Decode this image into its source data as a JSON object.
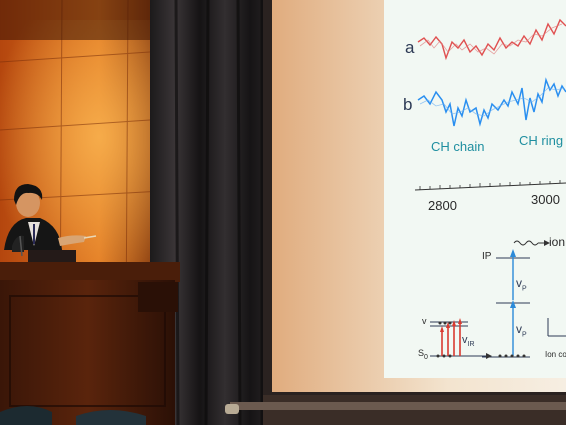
{
  "slide": {
    "trace_a_label": "a",
    "trace_b_label": "b",
    "trace_a_color": "#e05050",
    "trace_b_color": "#2a8ff0",
    "band_labels": [
      "CH chain",
      "CH ring"
    ],
    "axis_ticks": [
      "2800",
      "3000"
    ],
    "energy_diagram": {
      "ip_label": "IP",
      "ion_label": "ion",
      "vp_label": "v",
      "vp_sub": "P",
      "vir_label": "v",
      "vir_sub": "IR",
      "s0_label": "S",
      "s0_sub": "0",
      "v_label": "v",
      "ion_count_label": "Ion co"
    }
  }
}
